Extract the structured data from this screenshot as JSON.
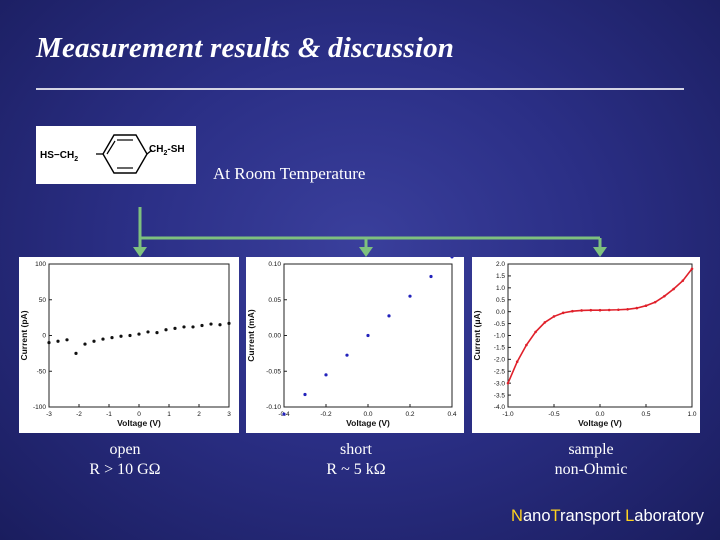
{
  "slide": {
    "title": "Measurement results & discussion",
    "subtitle": "At Room Temperature"
  },
  "molecule": {
    "left_group": "HS−CH",
    "left_sub": "2",
    "right_group": "CH",
    "right_sub": "2",
    "right_tail": "-SH"
  },
  "colors": {
    "accent_yellow": "#ffd21f",
    "branch_green": "#7ec07e",
    "trace_blue": "#2222bb",
    "trace_red": "#e0202a"
  },
  "captions": [
    {
      "line1": "open",
      "line2": "R > 10 GΩ"
    },
    {
      "line1": "short",
      "line2": "R ~ 5 kΩ"
    },
    {
      "line1": "sample",
      "line2": "non-Ohmic"
    }
  ],
  "footer": {
    "p1": "N",
    "p2": "ano",
    "p3": "T",
    "p4": "ransport ",
    "p5": "L",
    "p6": "aboratory"
  },
  "chart_data": [
    {
      "type": "scatter",
      "xlabel": "Voltage (V)",
      "ylabel": "Current (pA)",
      "xlim": [
        -3,
        3
      ],
      "ylim": [
        -100,
        100
      ],
      "xticks": [
        "-3",
        "-2",
        "-1",
        "0",
        "1",
        "2",
        "3"
      ],
      "yticks": [
        "100",
        "50",
        "0",
        "-50",
        "-100"
      ],
      "series": [
        {
          "x": [
            -3.0,
            -2.7,
            -2.4,
            -2.1,
            -1.8,
            -1.5,
            -1.2,
            -0.9,
            -0.6,
            -0.3,
            0.0,
            0.3,
            0.6,
            0.9,
            1.2,
            1.5,
            1.8,
            2.1,
            2.4,
            2.7,
            3.0
          ],
          "y": [
            -10,
            -8,
            -6,
            -25,
            -12,
            -8,
            -5,
            -3,
            -1,
            0,
            2,
            5,
            4,
            8,
            10,
            12,
            12,
            14,
            16,
            15,
            17
          ]
        }
      ]
    },
    {
      "type": "scatter",
      "xlabel": "Voltage (V)",
      "ylabel": "Current (mA)",
      "xlim": [
        -0.4,
        0.4
      ],
      "ylim": [
        -0.1,
        0.1
      ],
      "xticks": [
        "-0.4",
        "-0.2",
        "0.0",
        "0.2",
        "0.4"
      ],
      "yticks": [
        "0.10",
        "0.05",
        "0.00",
        "-0.05",
        "-0.10"
      ],
      "series": [
        {
          "x": [
            -0.4,
            -0.3,
            -0.2,
            -0.1,
            0.0,
            0.1,
            0.2,
            0.3,
            0.4
          ],
          "y": [
            -0.11,
            -0.0825,
            -0.055,
            -0.0275,
            0.0,
            0.0275,
            0.055,
            0.0825,
            0.11
          ]
        }
      ]
    },
    {
      "type": "line",
      "xlabel": "Voltage (V)",
      "ylabel": "Current (μA)",
      "xlim": [
        -1.0,
        1.0
      ],
      "ylim": [
        -4.0,
        2.0
      ],
      "xticks": [
        "-1.0",
        "-0.5",
        "0.0",
        "0.5",
        "1.0"
      ],
      "yticks": [
        "2.0",
        "1.5",
        "1.0",
        "0.5",
        "0.0",
        "-0.5",
        "-1.0",
        "-1.5",
        "-2.0",
        "-2.5",
        "-3.0",
        "-3.5",
        "-4.0"
      ],
      "series": [
        {
          "x": [
            -1.0,
            -0.9,
            -0.8,
            -0.7,
            -0.6,
            -0.5,
            -0.4,
            -0.3,
            -0.2,
            -0.1,
            0.0,
            0.1,
            0.2,
            0.3,
            0.4,
            0.5,
            0.6,
            0.7,
            0.8,
            0.9,
            1.0
          ],
          "y": [
            -3.0,
            -2.1,
            -1.4,
            -0.85,
            -0.45,
            -0.2,
            -0.05,
            0.02,
            0.05,
            0.06,
            0.06,
            0.07,
            0.08,
            0.1,
            0.15,
            0.25,
            0.4,
            0.65,
            0.95,
            1.3,
            1.8
          ]
        }
      ]
    }
  ]
}
